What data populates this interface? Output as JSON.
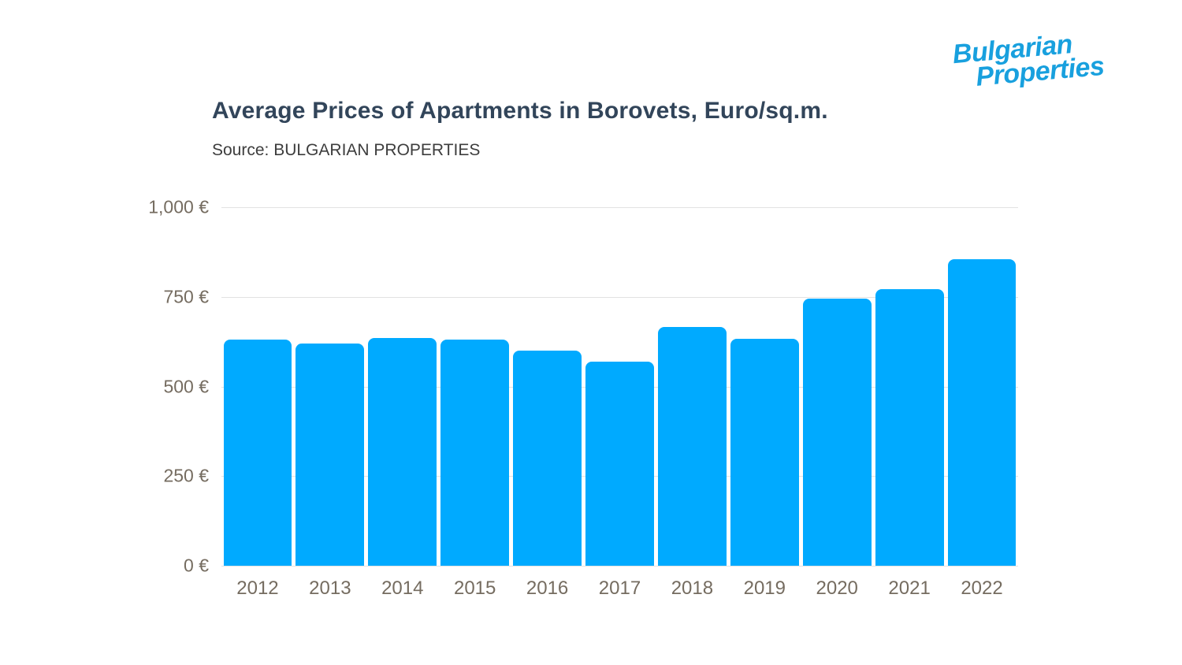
{
  "logo": {
    "line1": "Bulgarian",
    "line2": "Properties",
    "color": "#18a0de"
  },
  "header": {
    "title": "Average Prices of Apartments in Borovets, Euro/sq.m.",
    "source": "Source: BULGARIAN PROPERTIES"
  },
  "chart_data": {
    "type": "bar",
    "title": "Average Prices of Apartments in Borovets, Euro/sq.m.",
    "subtitle": "Source: BULGARIAN PROPERTIES",
    "categories": [
      "2012",
      "2013",
      "2014",
      "2015",
      "2016",
      "2017",
      "2018",
      "2019",
      "2020",
      "2021",
      "2022"
    ],
    "values": [
      630,
      620,
      636,
      631,
      601,
      570,
      665,
      634,
      746,
      771,
      854
    ],
    "unit": "Euro/sq.m.",
    "bar_color": "#00aaff",
    "xlabel": "",
    "ylabel": "",
    "ylim": [
      0,
      1000
    ],
    "yticks": [
      0,
      250,
      500,
      750,
      1000
    ],
    "ytick_labels": [
      "0 €",
      "250 €",
      "500 €",
      "750 €",
      "1,000 €"
    ],
    "grid": true,
    "legend": false
  }
}
